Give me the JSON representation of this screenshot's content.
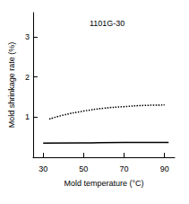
{
  "chart_data": {
    "type": "line",
    "title": "1101G-30",
    "x_label": "Mold temperature (°C)",
    "y_label": "Mold shrinkage rate (%)",
    "xlim": [
      25,
      95
    ],
    "xticks": [
      30,
      50,
      70,
      90
    ],
    "ylim": [
      0,
      3.6
    ],
    "yticks": [
      1,
      2,
      3
    ],
    "grid": false,
    "series": [
      {
        "color": "#000000",
        "line_style": "dotted",
        "x": [
          33,
          40,
          50,
          60,
          70,
          80,
          90
        ],
        "values": [
          0.95,
          1.05,
          1.15,
          1.22,
          1.26,
          1.29,
          1.3
        ]
      },
      {
        "color": "#000000",
        "line_style": "solid",
        "x": [
          30,
          50,
          70,
          92
        ],
        "values": [
          0.35,
          0.36,
          0.37,
          0.37
        ]
      }
    ]
  }
}
